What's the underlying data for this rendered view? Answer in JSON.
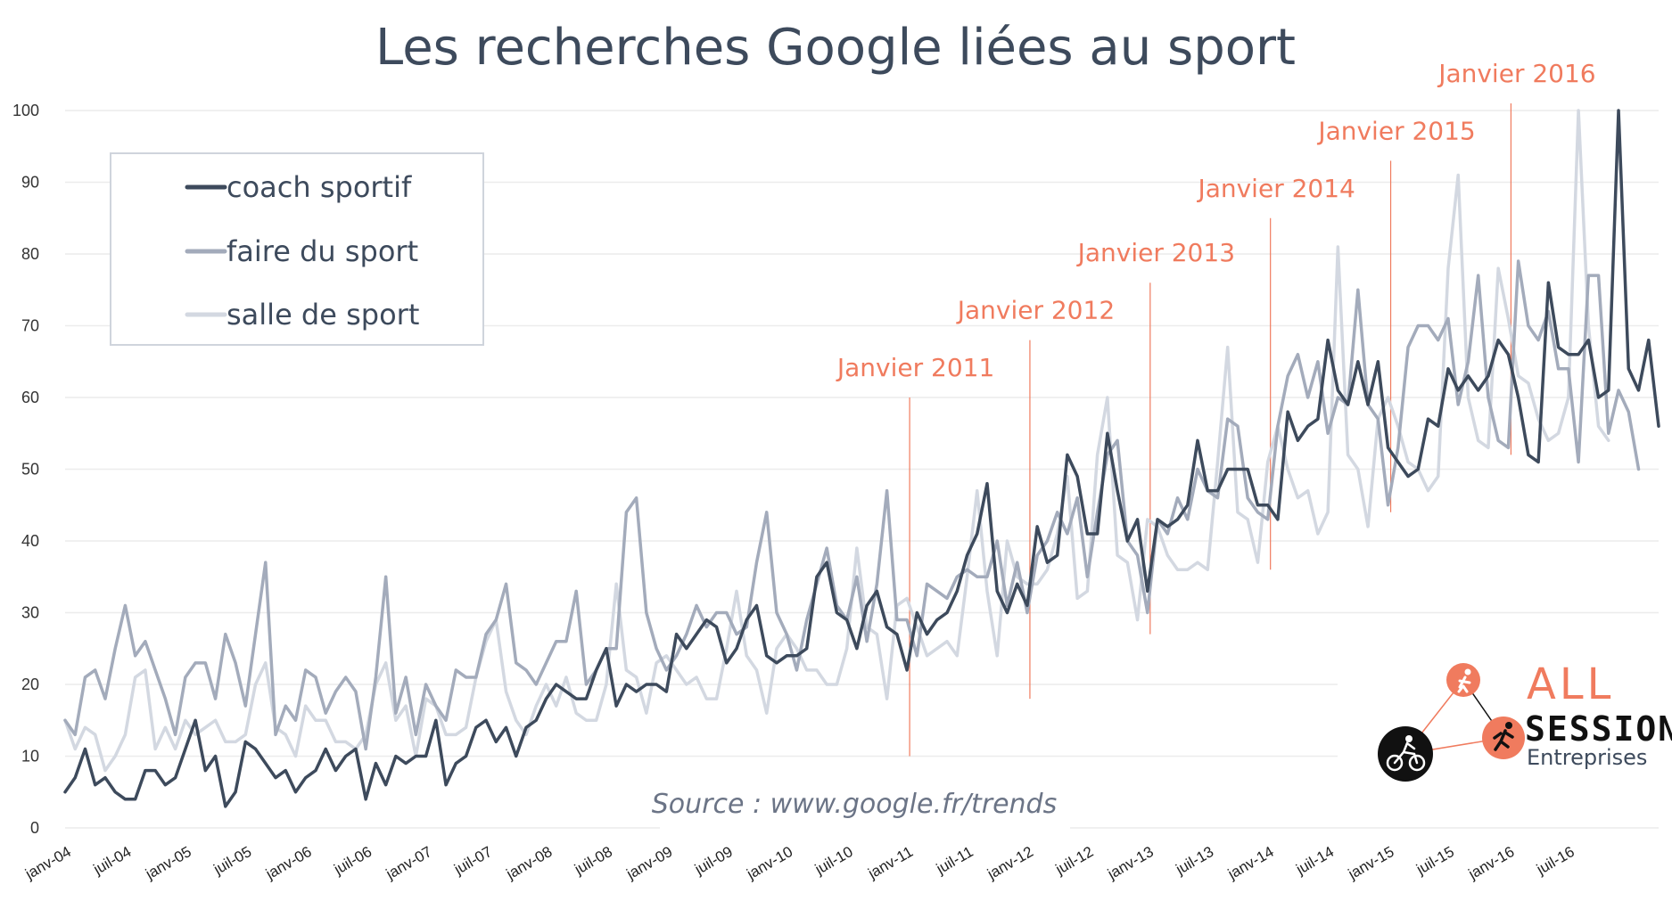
{
  "chart_data": {
    "type": "line",
    "title": "Les recherches Google liées au sport",
    "xlabel": "",
    "ylabel": "",
    "ylim": [
      0,
      100
    ],
    "yticks": [
      0,
      10,
      20,
      30,
      40,
      50,
      60,
      70,
      80,
      90,
      100
    ],
    "grid": "horizontal",
    "legend_position": "top-left",
    "x_start": "janv-04",
    "x_tick_labels": [
      "janv-04",
      "juil-04",
      "janv-05",
      "juil-05",
      "janv-06",
      "juil-06",
      "janv-07",
      "juil-07",
      "janv-08",
      "juil-08",
      "janv-09",
      "juil-09",
      "janv-10",
      "juil-10",
      "janv-11",
      "juil-11",
      "janv-12",
      "juil-12",
      "janv-13",
      "juil-13",
      "janv-14",
      "juil-14",
      "janv-15",
      "juil-15",
      "janv-16",
      "juil-16"
    ],
    "series": [
      {
        "name": "coach sportif",
        "color": "#3d4a5c",
        "values": [
          5,
          7,
          11,
          6,
          7,
          5,
          4,
          4,
          8,
          8,
          6,
          7,
          11,
          15,
          8,
          10,
          3,
          5,
          12,
          11,
          9,
          7,
          8,
          5,
          7,
          8,
          11,
          8,
          10,
          11,
          4,
          9,
          6,
          10,
          9,
          10,
          10,
          15,
          6,
          9,
          10,
          14,
          15,
          12,
          14,
          10,
          14,
          15,
          18,
          20,
          19,
          18,
          18,
          22,
          25,
          17,
          20,
          19,
          20,
          20,
          19,
          27,
          25,
          27,
          29,
          28,
          23,
          25,
          29,
          31,
          24,
          23,
          24,
          24,
          25,
          35,
          37,
          30,
          29,
          25,
          31,
          33,
          28,
          27,
          22,
          30,
          27,
          29,
          30,
          33,
          38,
          41,
          48,
          33,
          30,
          34,
          31,
          42,
          37,
          38,
          52,
          49,
          41,
          41,
          55,
          47,
          40,
          43,
          33,
          43,
          42,
          43,
          45,
          54,
          47,
          47,
          50,
          50,
          50,
          45,
          45,
          43,
          58,
          54,
          56,
          57,
          68,
          61,
          59,
          65,
          59,
          65,
          53,
          51,
          49,
          50,
          57,
          56,
          64,
          61,
          63,
          61,
          63,
          68,
          66,
          60,
          52,
          51,
          76,
          67,
          66,
          66,
          68,
          60,
          61,
          100,
          64,
          61,
          68,
          56
        ]
      },
      {
        "name": "faire du sport",
        "color": "#a3abbb",
        "values": [
          15,
          13,
          21,
          22,
          18,
          25,
          31,
          24,
          26,
          22,
          18,
          13,
          21,
          23,
          23,
          18,
          27,
          23,
          17,
          27,
          37,
          13,
          17,
          15,
          22,
          21,
          16,
          19,
          21,
          19,
          11,
          21,
          35,
          16,
          21,
          13,
          20,
          17,
          15,
          22,
          21,
          21,
          27,
          29,
          34,
          23,
          22,
          20,
          23,
          26,
          26,
          33,
          20,
          22,
          25,
          25,
          44,
          46,
          30,
          25,
          22,
          24,
          27,
          31,
          28,
          30,
          30,
          27,
          28,
          37,
          44,
          30,
          27,
          22,
          29,
          34,
          39,
          31,
          29,
          35,
          26,
          34,
          47,
          29,
          29,
          24,
          34,
          33,
          32,
          35,
          36,
          35,
          35,
          40,
          31,
          37,
          30,
          38,
          40,
          44,
          41,
          46,
          35,
          44,
          52,
          54,
          40,
          38,
          30,
          43,
          41,
          46,
          43,
          50,
          47,
          46,
          57,
          56,
          46,
          44,
          43,
          56,
          63,
          66,
          60,
          65,
          55,
          60,
          59,
          75,
          59,
          57,
          45,
          53,
          67,
          70,
          70,
          68,
          71,
          59,
          65,
          77,
          60,
          54,
          53,
          79,
          70,
          68,
          72,
          64,
          64,
          51,
          77,
          77,
          55,
          61,
          58,
          50
        ]
      },
      {
        "name": "salle de sport",
        "color": "#d3d8e1",
        "values": [
          15,
          11,
          14,
          13,
          8,
          10,
          13,
          21,
          22,
          11,
          14,
          11,
          15,
          13,
          14,
          15,
          12,
          12,
          13,
          20,
          23,
          14,
          13,
          10,
          17,
          15,
          15,
          12,
          12,
          11,
          13,
          20,
          23,
          15,
          17,
          10,
          18,
          17,
          13,
          13,
          14,
          21,
          26,
          29,
          19,
          15,
          13,
          17,
          20,
          17,
          21,
          16,
          15,
          15,
          20,
          34,
          22,
          21,
          16,
          23,
          24,
          22,
          20,
          21,
          18,
          18,
          25,
          33,
          24,
          22,
          16,
          25,
          27,
          25,
          22,
          22,
          20,
          20,
          25,
          39,
          28,
          27,
          18,
          31,
          32,
          28,
          24,
          25,
          26,
          24,
          35,
          47,
          33,
          24,
          40,
          35,
          34,
          34,
          36,
          41,
          49,
          32,
          33,
          52,
          60,
          38,
          37,
          29,
          43,
          42,
          38,
          36,
          36,
          37,
          36,
          51,
          67,
          44,
          43,
          37,
          51,
          56,
          50,
          46,
          47,
          41,
          44,
          81,
          52,
          50,
          42,
          57,
          60,
          56,
          51,
          50,
          47,
          49,
          78,
          91,
          60,
          54,
          53,
          78,
          71,
          63,
          62,
          57,
          54,
          55,
          60,
          100,
          70,
          56,
          54
        ]
      }
    ],
    "annotations": [
      {
        "label": "Janvier 2011",
        "x": "janv-11",
        "y_top": 60,
        "y_bottom": 10
      },
      {
        "label": "Janvier 2012",
        "x": "janv-12",
        "y_top": 68,
        "y_bottom": 18
      },
      {
        "label": "Janvier 2013",
        "x": "janv-13",
        "y_top": 76,
        "y_bottom": 27
      },
      {
        "label": "Janvier 2014",
        "x": "janv-14",
        "y_top": 85,
        "y_bottom": 36
      },
      {
        "label": "Janvier 2015",
        "x": "janv-15",
        "y_top": 93,
        "y_bottom": 44
      },
      {
        "label": "Janvier 2016",
        "x": "janv-16",
        "y_top": 101,
        "y_bottom": 52
      }
    ],
    "source": "Source : www.google.fr/trends"
  },
  "logo": {
    "line1": "ALL",
    "line2": "SESSIONS",
    "line3": "Entreprises",
    "accent_color": "#f07b5e",
    "dark_color": "#111111",
    "icons": [
      "volleyball-player-icon",
      "runner-icon",
      "cyclist-icon"
    ]
  }
}
